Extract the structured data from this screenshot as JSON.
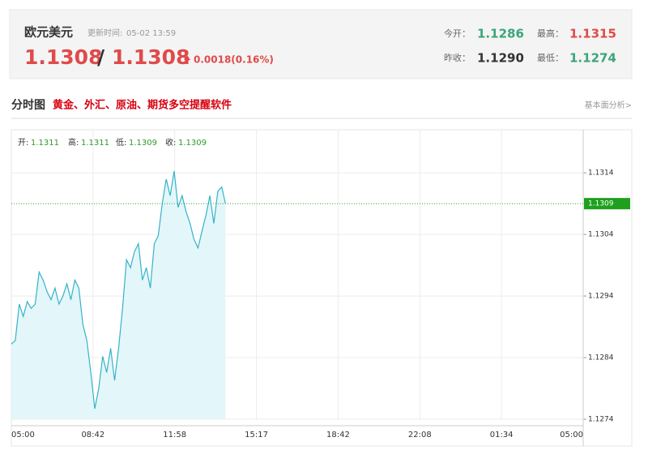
{
  "header": {
    "title": "欧元美元",
    "update_label": "更新时间:",
    "update_time": "05-02 13:59",
    "bid": "1.1308",
    "separator": "/",
    "ask": "1.1308",
    "change": "0.0018(0.16%)",
    "stats": [
      {
        "label": "今开：",
        "value": "1.1286"
      },
      {
        "label": "最高：",
        "value": "1.1315"
      },
      {
        "label": "昨收：",
        "value": "1.1290"
      },
      {
        "label": "最低：",
        "value": "1.1274"
      }
    ]
  },
  "tabs": {
    "title": "分时图",
    "promo": "黄金、外汇、原油、期货多空提醒软件",
    "link": "基本面分析>"
  },
  "chart_data": {
    "type": "line",
    "x": [
      "05:00",
      "05:10",
      "05:20",
      "05:30",
      "05:40",
      "05:50",
      "06:00",
      "06:10",
      "06:20",
      "06:30",
      "06:40",
      "06:50",
      "07:00",
      "07:10",
      "07:20",
      "07:30",
      "07:40",
      "07:50",
      "08:00",
      "08:10",
      "08:20",
      "08:30",
      "08:40",
      "08:50",
      "09:00",
      "09:10",
      "09:20",
      "09:30",
      "09:40",
      "09:50",
      "10:00",
      "10:10",
      "10:20",
      "10:30",
      "10:40",
      "10:50",
      "11:00",
      "11:10",
      "11:20",
      "11:30",
      "11:40",
      "11:50",
      "12:00",
      "12:10",
      "12:20",
      "12:30",
      "12:40",
      "12:50",
      "13:00",
      "13:10",
      "13:20",
      "13:30",
      "13:40",
      "13:50",
      "13:59"
    ],
    "series": [
      {
        "color": "#35b3c6",
        "values": [
          1.12862,
          1.12868,
          1.12927,
          1.12907,
          1.12931,
          1.1292,
          1.12927,
          1.12979,
          1.12966,
          1.12947,
          1.12934,
          1.12953,
          1.12927,
          1.1294,
          1.1296,
          1.12934,
          1.12966,
          1.12953,
          1.12894,
          1.12868,
          1.12816,
          1.12757,
          1.1279,
          1.12842,
          1.12816,
          1.12855,
          1.12803,
          1.12855,
          1.1292,
          1.12999,
          1.12986,
          1.13012,
          1.13025,
          1.12966,
          1.12986,
          1.12953,
          1.13025,
          1.13038,
          1.1309,
          1.1313,
          1.13103,
          1.13143,
          1.13084,
          1.13103,
          1.13077,
          1.13058,
          1.13032,
          1.13018,
          1.13045,
          1.13071,
          1.13103,
          1.13058,
          1.1311,
          1.13117,
          1.1309
        ]
      }
    ],
    "ylim": [
      1.1274,
      1.1321
    ],
    "yticks": [
      1.1274,
      1.1284,
      1.1294,
      1.1304,
      1.1314
    ],
    "xtick_labels": [
      "05:00",
      "08:42",
      "11:58",
      "15:17",
      "18:42",
      "22:08",
      "01:34",
      "05:00"
    ],
    "ohlc": [
      {
        "label": "开:",
        "value": "1.1311"
      },
      {
        "label": "高:",
        "value": "1.1311"
      },
      {
        "label": "低:",
        "value": "1.1309"
      },
      {
        "label": "收:",
        "value": "1.1309"
      }
    ],
    "last_price": 1.1309,
    "grid": true
  }
}
